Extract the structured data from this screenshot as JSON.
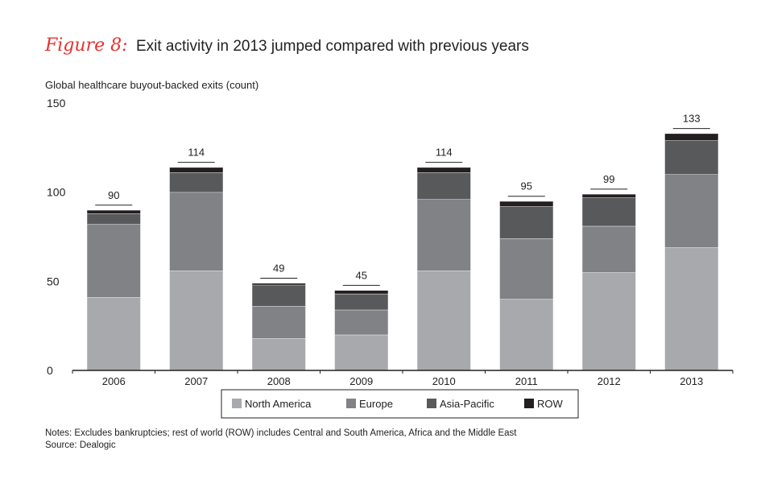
{
  "figure": {
    "label": "Figure 8:",
    "title": "Exit activity in 2013 jumped compared with previous years"
  },
  "notes": {
    "line1": "Notes: Excludes bankruptcies; rest of world (ROW) includes Central and South America, Africa and the Middle East",
    "line2": "Source: Dealogic"
  },
  "chart_data": {
    "type": "bar",
    "stacked": true,
    "ylabel": "Global healthcare buyout-backed exits (count)",
    "xlabel": "",
    "ylim": [
      0,
      150
    ],
    "yticks": [
      0,
      50,
      100,
      150
    ],
    "categories": [
      "2006",
      "2007",
      "2008",
      "2009",
      "2010",
      "2011",
      "2012",
      "2013"
    ],
    "series": [
      {
        "name": "North America",
        "color": "#a7a9ac",
        "values": [
          41,
          56,
          18,
          20,
          56,
          40,
          55,
          69
        ]
      },
      {
        "name": "Europe",
        "color": "#808285",
        "values": [
          41,
          44,
          18,
          14,
          40,
          34,
          26,
          41
        ]
      },
      {
        "name": "Asia-Pacific",
        "color": "#58595b",
        "values": [
          6,
          11,
          12,
          9,
          15,
          18,
          16,
          19
        ]
      },
      {
        "name": "ROW",
        "color": "#231f20",
        "values": [
          2,
          3,
          1,
          2,
          3,
          3,
          2,
          4
        ]
      }
    ],
    "totals": [
      90,
      114,
      49,
      45,
      114,
      95,
      99,
      133
    ],
    "legend_position": "bottom-center"
  }
}
